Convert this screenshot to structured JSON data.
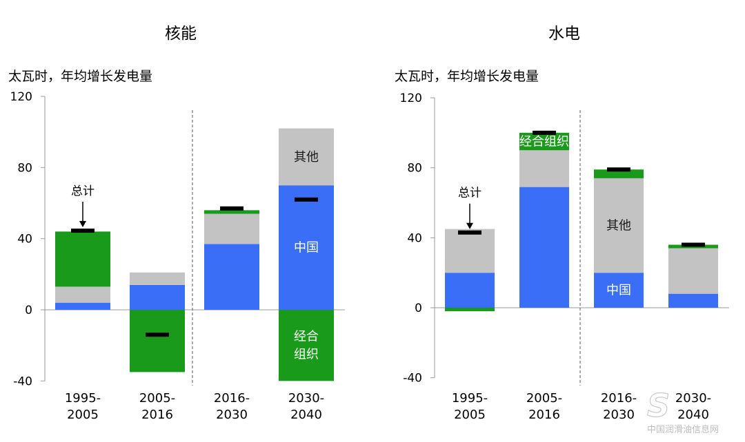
{
  "chart_data": [
    {
      "type": "bar",
      "stacked": true,
      "title": "核能",
      "ylabel": "太瓦时，年均增长发电量",
      "ylim": [
        -40,
        120
      ],
      "yticks": [
        "120",
        "80",
        "40",
        "0",
        "-40"
      ],
      "categories": [
        "1995-\n2005",
        "2005-\n2016",
        "2016-\n2030",
        "2030-\n2040"
      ],
      "series": [
        {
          "name": "中国",
          "color": "#3b6ef6",
          "values": [
            4,
            14,
            37,
            70
          ]
        },
        {
          "name": "其他",
          "color": "#c3c3c3",
          "values": [
            9,
            7,
            17,
            32
          ]
        },
        {
          "name": "经合组织",
          "color": "#1a9a1a",
          "values": [
            31,
            -35,
            2,
            -40
          ]
        }
      ],
      "totals": [
        44.5,
        -14,
        57,
        62
      ],
      "inner_labels": [
        {
          "text": "其他",
          "category": 3,
          "series": "其他"
        },
        {
          "text": "中国",
          "category": 3,
          "series": "中国"
        },
        {
          "text": "经合\n组织",
          "category": 3,
          "series": "经合组织"
        }
      ],
      "annotation": {
        "text": "总计",
        "category": 0
      }
    },
    {
      "type": "bar",
      "stacked": true,
      "title": "水电",
      "ylabel": "太瓦时，年均增长发电量",
      "ylim": [
        -40,
        120
      ],
      "yticks": [
        "120",
        "80",
        "40",
        "0",
        "-40"
      ],
      "categories": [
        "1995-\n2005",
        "2005-\n2016",
        "2016-\n2030",
        "2030-\n2040"
      ],
      "series": [
        {
          "name": "中国",
          "color": "#3b6ef6",
          "values": [
            20,
            69,
            20,
            8
          ]
        },
        {
          "name": "其他",
          "color": "#c3c3c3",
          "values": [
            25,
            21,
            54,
            26
          ]
        },
        {
          "name": "经合组织",
          "color": "#1a9a1a",
          "values": [
            -2,
            10,
            5,
            2
          ]
        }
      ],
      "totals": [
        43,
        100,
        79,
        36
      ],
      "inner_labels": [
        {
          "text": "经合组织",
          "category": 1,
          "series": "经合组织"
        },
        {
          "text": "其他",
          "category": 2,
          "series": "其他"
        },
        {
          "text": "中国",
          "category": 2,
          "series": "中国"
        }
      ],
      "annotation": {
        "text": "总计",
        "category": 0
      }
    }
  ],
  "watermark": {
    "logo_text": "S",
    "caption": "中国润滑油信息网"
  }
}
